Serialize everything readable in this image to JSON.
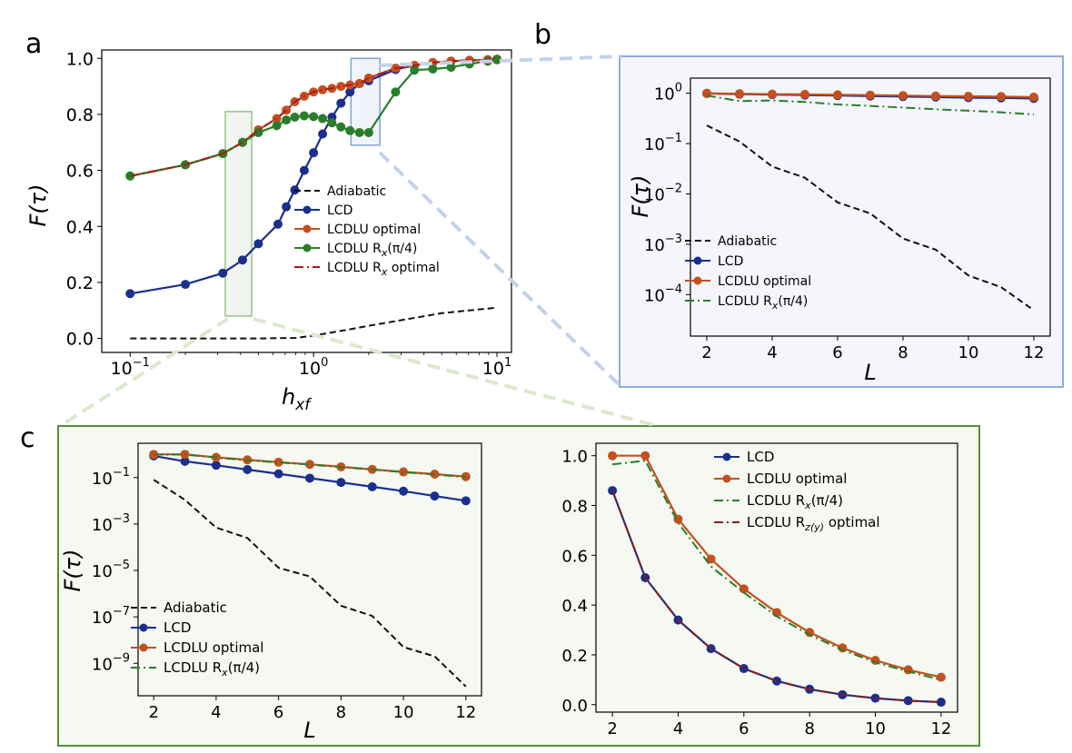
{
  "panels": {
    "a": "a",
    "b": "b",
    "c": "c"
  },
  "colors": {
    "adiabatic": "#111111",
    "lcd": "#1b2f8c",
    "lcdlu_opt": "#c4501e",
    "lcdlu_rx": "#2a7d2a",
    "lcdlu_rx_opt": "#b01818",
    "lcdlu_rzy": "#8c1c1c"
  },
  "chart_data": [
    {
      "id": "a",
      "type": "line",
      "xscale": "log",
      "xlim": [
        0.07,
        12
      ],
      "ylim": [
        -0.05,
        1.03
      ],
      "xlabel": "h_xf",
      "ylabel": "F(τ)",
      "xticks": [
        {
          "v": 0.1,
          "label": "10",
          "exp": "−1"
        },
        {
          "v": 1,
          "label": "10",
          "exp": "0"
        },
        {
          "v": 10,
          "label": "10",
          "exp": "1"
        }
      ],
      "yticks": [
        0,
        0.2,
        0.4,
        0.6,
        0.8,
        1.0
      ],
      "ytick_labels": [
        "0.0",
        "0.2",
        "0.4",
        "0.6",
        "0.8",
        "1.0"
      ],
      "legend": {
        "placement": "center-right",
        "entries": [
          "Adiabatic",
          "LCD",
          "LCDLU optimal",
          "LCDLU R_x(π/4)",
          "LCDLU R_x optimal"
        ]
      },
      "highlight_boxes": [
        {
          "xrange": [
            0.33,
            0.46
          ],
          "yrange": [
            0.08,
            0.81
          ],
          "color": "green"
        },
        {
          "xrange": [
            1.6,
            2.3
          ],
          "yrange": [
            0.69,
            1.0
          ],
          "color": "blue"
        }
      ],
      "series": [
        {
          "key": "adiabatic",
          "name": "Adiabatic",
          "style": "dashed",
          "markers": false,
          "x": [
            0.1,
            0.2,
            0.5,
            0.8,
            1.0,
            1.5,
            2,
            3,
            5,
            7,
            10
          ],
          "y": [
            0.0,
            0.0,
            0.0,
            0.002,
            0.01,
            0.03,
            0.045,
            0.065,
            0.09,
            0.1,
            0.11
          ]
        },
        {
          "key": "lcd",
          "name": "LCD",
          "style": "solid",
          "markers": true,
          "x": [
            0.1,
            0.2,
            0.32,
            0.41,
            0.5,
            0.64,
            0.71,
            0.79,
            0.89,
            1.0,
            1.12,
            1.26,
            1.41,
            1.58,
            1.78,
            2.0,
            2.8,
            3.55,
            4.47,
            5.62,
            7.08,
            8.91,
            10
          ],
          "y": [
            0.16,
            0.193,
            0.233,
            0.28,
            0.338,
            0.408,
            0.47,
            0.53,
            0.6,
            0.663,
            0.73,
            0.79,
            0.84,
            0.88,
            0.91,
            0.92,
            0.96,
            0.975,
            0.985,
            0.99,
            0.993,
            0.995,
            0.997
          ]
        },
        {
          "key": "lcdlu_opt",
          "name": "LCDLU optimal",
          "style": "solid",
          "markers": true,
          "x": [
            0.1,
            0.2,
            0.32,
            0.41,
            0.5,
            0.63,
            0.71,
            0.79,
            0.89,
            1.0,
            1.12,
            1.26,
            1.41,
            1.58,
            1.78,
            2.0,
            2.8,
            3.55,
            4.47,
            5.62,
            7.08,
            8.91,
            10
          ],
          "y": [
            0.58,
            0.62,
            0.66,
            0.7,
            0.745,
            0.785,
            0.815,
            0.845,
            0.865,
            0.88,
            0.888,
            0.893,
            0.9,
            0.905,
            0.91,
            0.93,
            0.965,
            0.975,
            0.985,
            0.99,
            0.993,
            0.995,
            0.997
          ]
        },
        {
          "key": "lcdlu_rx",
          "name": "LCDLU R_x(π/4)",
          "style": "solid",
          "markers": true,
          "x": [
            0.1,
            0.2,
            0.32,
            0.41,
            0.5,
            0.63,
            0.71,
            0.79,
            0.89,
            1.0,
            1.12,
            1.26,
            1.41,
            1.58,
            1.78,
            2.0,
            2.8,
            3.55,
            4.47,
            5.62,
            7.08,
            8.91,
            10
          ],
          "y": [
            0.58,
            0.62,
            0.66,
            0.7,
            0.735,
            0.76,
            0.78,
            0.79,
            0.795,
            0.792,
            0.785,
            0.77,
            0.755,
            0.742,
            0.735,
            0.735,
            0.88,
            0.958,
            0.962,
            0.968,
            0.98,
            0.99,
            0.995
          ]
        },
        {
          "key": "lcdlu_rx_opt",
          "name": "LCDLU R_x optimal",
          "style": "dashdot",
          "markers": false,
          "x": [
            0.1,
            0.2,
            0.32,
            0.41,
            0.5,
            0.63,
            0.71,
            0.79,
            0.89,
            1.0,
            1.12,
            1.26,
            1.41,
            1.58,
            1.78,
            2.0,
            2.8,
            3.55,
            4.47,
            5.62,
            7.08,
            8.91,
            10
          ],
          "y": [
            0.58,
            0.62,
            0.66,
            0.7,
            0.745,
            0.785,
            0.815,
            0.845,
            0.865,
            0.88,
            0.888,
            0.893,
            0.9,
            0.905,
            0.91,
            0.93,
            0.965,
            0.975,
            0.985,
            0.99,
            0.993,
            0.995,
            0.997
          ]
        }
      ]
    },
    {
      "id": "b",
      "type": "line",
      "yscale": "log",
      "xlim": [
        1.5,
        12.5
      ],
      "ylim": [
        1.5e-05,
        2.0
      ],
      "xlabel": "L",
      "ylabel": "F(τ)",
      "xticks": [
        2,
        4,
        6,
        8,
        10,
        12
      ],
      "yticks": [
        {
          "v": 1,
          "label": "10",
          "exp": "0"
        },
        {
          "v": 0.1,
          "label": "10",
          "exp": "−1"
        },
        {
          "v": 0.01,
          "label": "10",
          "exp": "−2"
        },
        {
          "v": 0.001,
          "label": "10",
          "exp": "−3"
        },
        {
          "v": 0.0001,
          "label": "10",
          "exp": "−4"
        }
      ],
      "legend": {
        "placement": "bottom-left",
        "entries": [
          "Adiabatic",
          "LCD",
          "LCDLU optimal",
          "LCDLU R_x(π/4)"
        ]
      },
      "series": [
        {
          "key": "adiabatic",
          "name": "Adiabatic",
          "style": "dashed",
          "markers": false,
          "x": [
            2,
            3,
            4,
            5,
            6,
            7,
            8,
            9,
            10,
            11,
            12
          ],
          "y": [
            0.23,
            0.11,
            0.035,
            0.021,
            0.0068,
            0.0041,
            0.0013,
            0.00078,
            0.00024,
            0.00014,
            4.9e-05
          ]
        },
        {
          "key": "lcd",
          "name": "LCD",
          "style": "solid",
          "markers": true,
          "x": [
            2,
            3,
            4,
            5,
            6,
            7,
            8,
            9,
            10,
            11,
            12
          ],
          "y": [
            0.99,
            0.96,
            0.94,
            0.92,
            0.9,
            0.88,
            0.86,
            0.84,
            0.82,
            0.81,
            0.79
          ]
        },
        {
          "key": "lcdlu_opt",
          "name": "LCDLU optimal",
          "style": "solid",
          "markers": true,
          "x": [
            2,
            3,
            4,
            5,
            6,
            7,
            8,
            9,
            10,
            11,
            12
          ],
          "y": [
            1.0,
            0.98,
            0.96,
            0.95,
            0.93,
            0.92,
            0.9,
            0.88,
            0.87,
            0.86,
            0.84
          ]
        },
        {
          "key": "lcdlu_rx",
          "name": "LCDLU R_x(π/4)",
          "style": "dashdot",
          "markers": false,
          "x": [
            2,
            3,
            4,
            5,
            6,
            7,
            8,
            9,
            10,
            11,
            12
          ],
          "y": [
            0.9,
            0.7,
            0.72,
            0.67,
            0.6,
            0.56,
            0.52,
            0.48,
            0.45,
            0.42,
            0.38
          ]
        }
      ]
    },
    {
      "id": "c-left",
      "type": "line",
      "yscale": "log",
      "xlim": [
        1.5,
        12.5
      ],
      "ylim": [
        4e-11,
        3.0
      ],
      "xlabel": "L",
      "ylabel": "F(τ)",
      "xticks": [
        2,
        4,
        6,
        8,
        10,
        12
      ],
      "yticks": [
        {
          "v": 0.1,
          "label": "10",
          "exp": "−1"
        },
        {
          "v": 0.001,
          "label": "10",
          "exp": "−3"
        },
        {
          "v": 1e-05,
          "label": "10",
          "exp": "−5"
        },
        {
          "v": 1e-07,
          "label": "10",
          "exp": "−7"
        },
        {
          "v": 1e-09,
          "label": "10",
          "exp": "−9"
        }
      ],
      "legend": {
        "placement": "bottom-left",
        "entries": [
          "Adiabatic",
          "LCD",
          "LCDLU optimal",
          "LCDLU R_x(π/4)"
        ]
      },
      "series": [
        {
          "key": "adiabatic",
          "name": "Adiabatic",
          "style": "dashed",
          "markers": false,
          "x": [
            2,
            3,
            4,
            5,
            6,
            7,
            8,
            9,
            10,
            11,
            12
          ],
          "y": [
            0.08,
            0.011,
            0.0007,
            0.00025,
            1.3e-05,
            5.5e-06,
            3e-07,
            1.1e-07,
            5e-09,
            2e-09,
            1e-10
          ]
        },
        {
          "key": "lcd",
          "name": "LCD",
          "style": "solid",
          "markers": true,
          "x": [
            2,
            3,
            4,
            5,
            6,
            7,
            8,
            9,
            10,
            11,
            12
          ],
          "y": [
            0.86,
            0.5,
            0.34,
            0.22,
            0.145,
            0.094,
            0.062,
            0.04,
            0.026,
            0.016,
            0.01
          ]
        },
        {
          "key": "lcdlu_opt",
          "name": "LCDLU optimal",
          "style": "solid",
          "markers": true,
          "x": [
            2,
            3,
            4,
            5,
            6,
            7,
            8,
            9,
            10,
            11,
            12
          ],
          "y": [
            1.0,
            1.0,
            0.74,
            0.58,
            0.46,
            0.37,
            0.29,
            0.225,
            0.175,
            0.14,
            0.11
          ]
        },
        {
          "key": "lcdlu_rx",
          "name": "LCDLU R_x(π/4)",
          "style": "dashdot",
          "markers": false,
          "x": [
            2,
            3,
            4,
            5,
            6,
            7,
            8,
            9,
            10,
            11,
            12
          ],
          "y": [
            0.97,
            0.98,
            0.72,
            0.55,
            0.45,
            0.36,
            0.28,
            0.22,
            0.17,
            0.135,
            0.105
          ]
        }
      ]
    },
    {
      "id": "c-right",
      "type": "line",
      "xlim": [
        1.5,
        12.5
      ],
      "ylim": [
        -0.03,
        1.05
      ],
      "xlabel": "",
      "ylabel": "",
      "xticks": [
        2,
        4,
        6,
        8,
        10,
        12
      ],
      "yticks": [
        0,
        0.2,
        0.4,
        0.6,
        0.8,
        1.0
      ],
      "ytick_labels": [
        "0.0",
        "0.2",
        "0.4",
        "0.6",
        "0.8",
        "1.0"
      ],
      "legend": {
        "placement": "top-right",
        "entries": [
          "LCD",
          "LCDLU optimal",
          "LCDLU R_x(π/4)",
          "LCDLU R_z(y) optimal"
        ]
      },
      "series": [
        {
          "key": "lcd",
          "name": "LCD",
          "style": "solid",
          "markers": true,
          "x": [
            2,
            3,
            4,
            5,
            6,
            7,
            8,
            9,
            10,
            11,
            12
          ],
          "y": [
            0.86,
            0.51,
            0.34,
            0.225,
            0.145,
            0.095,
            0.062,
            0.04,
            0.026,
            0.016,
            0.01
          ]
        },
        {
          "key": "lcdlu_opt",
          "name": "LCDLU optimal",
          "style": "solid",
          "markers": true,
          "x": [
            2,
            3,
            4,
            5,
            6,
            7,
            8,
            9,
            10,
            11,
            12
          ],
          "y": [
            1.0,
            1.0,
            0.745,
            0.585,
            0.465,
            0.37,
            0.29,
            0.228,
            0.178,
            0.14,
            0.11
          ]
        },
        {
          "key": "lcdlu_rx",
          "name": "LCDLU R_x(π/4)",
          "style": "dashdot",
          "markers": false,
          "x": [
            2,
            3,
            4,
            5,
            6,
            7,
            8,
            9,
            10,
            11,
            12
          ],
          "y": [
            0.965,
            0.98,
            0.73,
            0.555,
            0.45,
            0.355,
            0.28,
            0.22,
            0.17,
            0.133,
            0.1
          ]
        },
        {
          "key": "lcdlu_rzy",
          "name": "LCDLU R_z(y) optimal",
          "style": "dashdot",
          "markers": false,
          "x": [
            2,
            3,
            4,
            5,
            6,
            7,
            8,
            9,
            10,
            11,
            12
          ],
          "y": [
            0.86,
            0.51,
            0.34,
            0.225,
            0.145,
            0.095,
            0.062,
            0.04,
            0.026,
            0.016,
            0.01
          ]
        }
      ]
    }
  ]
}
